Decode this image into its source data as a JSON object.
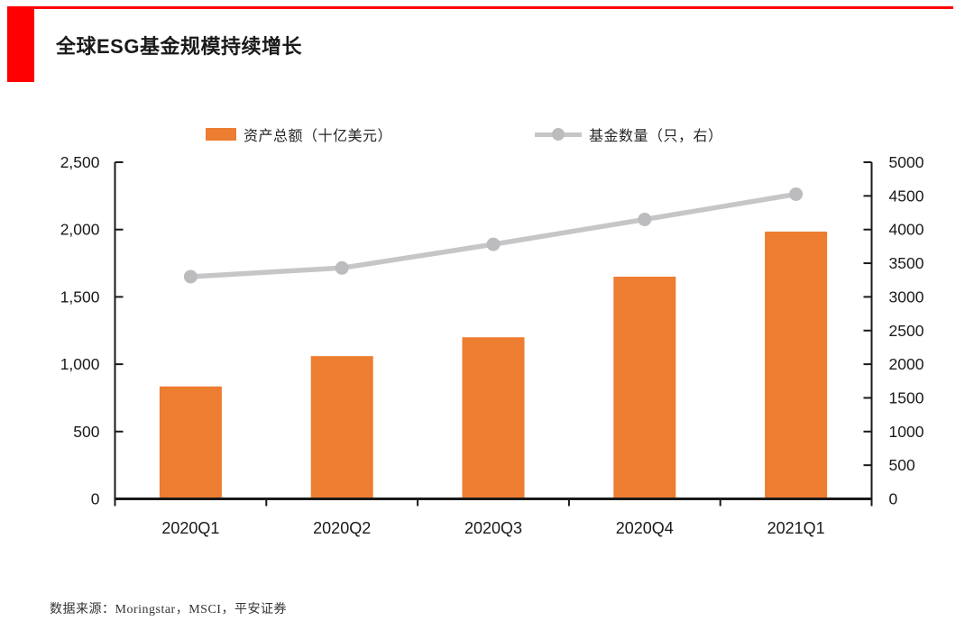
{
  "page": {
    "title": "全球ESG基金规模持续增长",
    "source": "数据来源：Moringstar，MSCI，平安证券"
  },
  "colors": {
    "accent_red": "#ff0000",
    "bar_orange": "#ED7D31",
    "line_gray": "#c6c6c8",
    "marker_gray": "#bcbcbe",
    "axis_black": "#1a1a1a"
  },
  "legend": {
    "bar_label": "资产总额（十亿美元）",
    "line_label": "基金数量（只，右）"
  },
  "chart_data": {
    "type": "bar",
    "title": "全球ESG基金规模持续增长",
    "categories": [
      "2020Q1",
      "2020Q2",
      "2020Q3",
      "2020Q4",
      "2021Q1"
    ],
    "series": [
      {
        "name": "资产总额（十亿美元）",
        "type": "bar",
        "axis": "left",
        "color": "#ED7D31",
        "values": [
          835,
          1060,
          1200,
          1650,
          1985
        ]
      },
      {
        "name": "基金数量（只，右）",
        "type": "line",
        "axis": "right",
        "color": "#c6c6c8",
        "values": [
          3300,
          3430,
          3780,
          4150,
          4525
        ]
      }
    ],
    "left_axis": {
      "min": 0,
      "max": 2500,
      "step": 500,
      "tick_labels": [
        "0",
        "500",
        "1,000",
        "1,500",
        "2,000",
        "2,500"
      ]
    },
    "right_axis": {
      "min": 0,
      "max": 5000,
      "step": 500,
      "tick_labels": [
        "0",
        "500",
        "1000",
        "1500",
        "2000",
        "2500",
        "3000",
        "3500",
        "4000",
        "4500",
        "5000"
      ]
    },
    "grid": false,
    "legend_position": "top"
  }
}
